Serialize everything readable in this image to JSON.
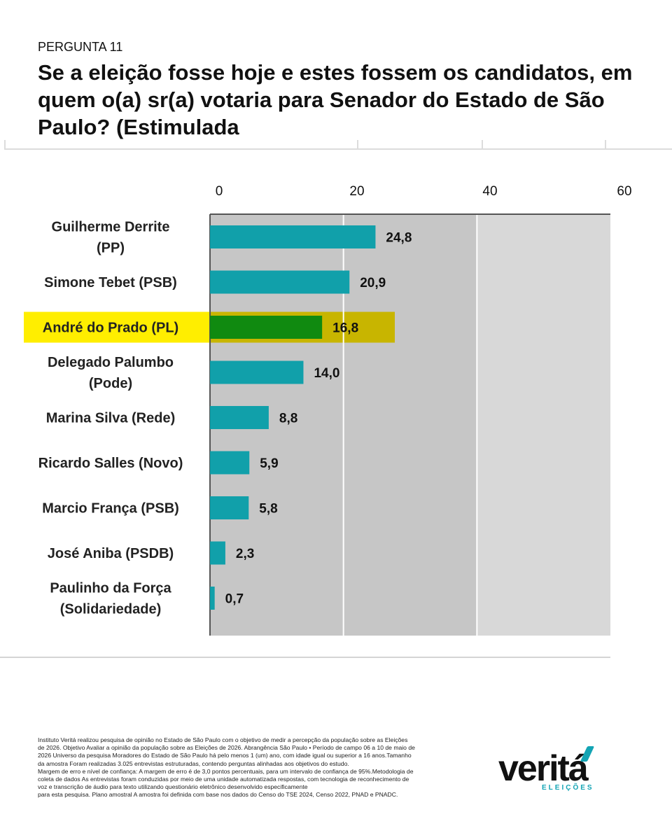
{
  "header": {
    "kicker": "PERGUNTA 11",
    "title": "Se a eleição fosse hoje e estes fossem os candidatos, em quem o(a) sr(a) votaria para Senador do Estado de São Paulo? (Estimulada"
  },
  "chart_data": {
    "type": "bar",
    "orientation": "horizontal",
    "categories": [
      [
        "Guilherme Derrite",
        "(PP)"
      ],
      [
        "Simone Tebet (PSB)"
      ],
      [
        "André do Prado (PL)"
      ],
      [
        "Delegado Palumbo",
        "(Pode)"
      ],
      [
        "Marina Silva (Rede)"
      ],
      [
        "Ricardo Salles (Novo)"
      ],
      [
        "Marcio França (PSB)"
      ],
      [
        "José Aniba (PSDB)"
      ],
      [
        "Paulinho da Força",
        "(Solidariedade)"
      ]
    ],
    "values": [
      24.8,
      20.9,
      16.8,
      14.0,
      8.8,
      5.9,
      5.8,
      2.3,
      0.7
    ],
    "value_labels": [
      "24,8",
      "20,9",
      "16,8",
      "14,0",
      "8,8",
      "5,9",
      "5,8",
      "2,3",
      "0,7"
    ],
    "xlim": [
      0,
      60
    ],
    "xticks": [
      0,
      20,
      40,
      60
    ],
    "xtick_labels": [
      "0",
      "20",
      "40",
      "60"
    ],
    "highlight_index": 2,
    "grid": true,
    "colors": {
      "bar": "#11a0aa",
      "highlight_bar": "#108a10",
      "highlight_band": "#ffee00",
      "highlight_band_over_plot": "#c8b500",
      "plot_background_dark": "#c6c6c6",
      "plot_background_light": "#d8d8d8",
      "gridline": "#ffffff",
      "axis": "#555555"
    }
  },
  "footer": {
    "note": [
      "Instituto Veritá realizou pesquisa de opinião no Estado de São Paulo com o objetivo de medir a percepção da população sobre as Eleições",
      "de 2026. Objetivo Avaliar a opinião da população sobre as Eleições de 2026. Abrangência São Paulo • Período de campo 06 a 10 de maio de",
      "2026 Universo da pesquisa Moradores do Estado de São Paulo há pelo menos 1 (um) ano, com idade igual ou superior a 16 anos.Tamanho",
      "da amostra Foram realizadas 3.025 entrevistas estruturadas, contendo perguntas alinhadas aos objetivos do estudo.",
      "Margem de erro e nível de confiança: A margem de erro é de 3,0 pontos percentuais, para um intervalo de confiança de 95%.Metodologia de",
      "coleta de dados As entrevistas foram conduzidas por meio de uma unidade automatizada   respostas, com tecnologia de reconhecimento de",
      "voz e transcrição de áudio para texto utilizando questionário eletrônico desenvolvido especificamente",
      "para esta pesquisa. Plano amostral A amostra foi definida com base nos dados do Censo do TSE 2024, Censo 2022, PNAD e PNADC."
    ],
    "logo": {
      "word": "veritá",
      "sub": "ELEIÇÕES",
      "accent": "#13a4b4"
    }
  }
}
